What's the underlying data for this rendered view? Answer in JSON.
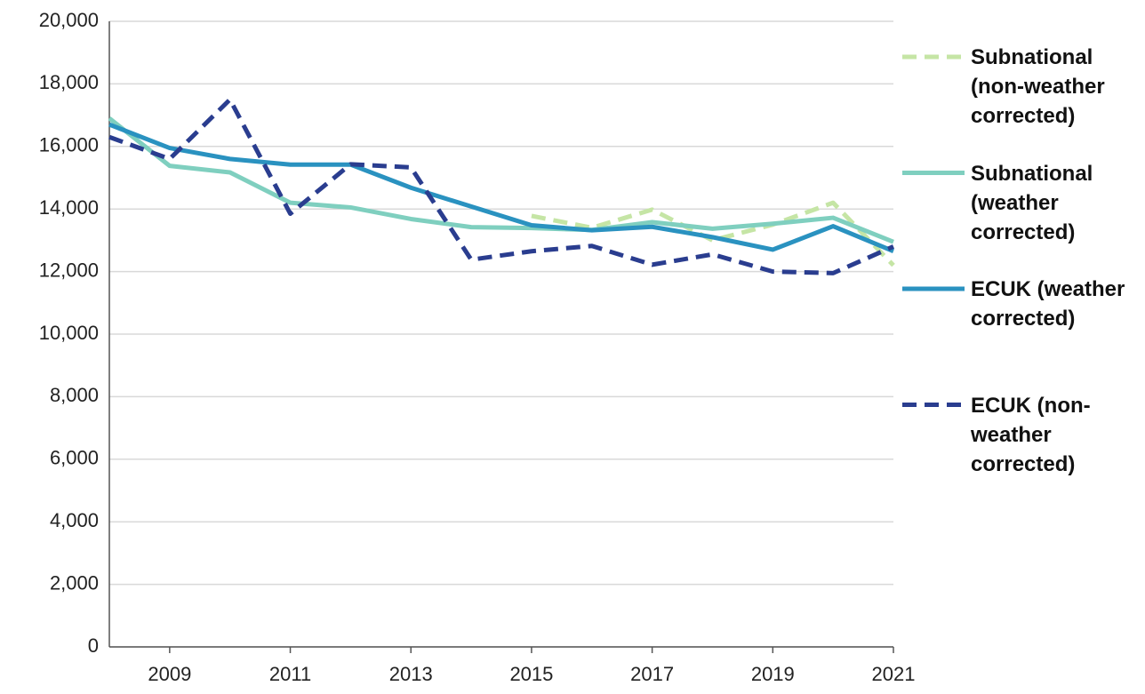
{
  "chart_data": {
    "type": "line",
    "x": [
      2008,
      2009,
      2010,
      2011,
      2012,
      2013,
      2014,
      2015,
      2016,
      2017,
      2018,
      2019,
      2020,
      2021
    ],
    "xlim": [
      2008,
      2021
    ],
    "xticks": [
      2009,
      2011,
      2013,
      2015,
      2017,
      2019,
      2021
    ],
    "ylim": [
      0,
      20000
    ],
    "yticks": [
      0,
      {
        "value": 2000,
        "label": "2,000"
      },
      {
        "value": 4000,
        "label": "4,000"
      },
      {
        "value": 6000,
        "label": "6,000"
      },
      {
        "value": 8000,
        "label": "8,000"
      },
      {
        "value": 10000,
        "label": "10,000"
      },
      {
        "value": 12000,
        "label": "12,000"
      },
      {
        "value": 14000,
        "label": "14,000"
      },
      {
        "value": 16000,
        "label": "16,000"
      },
      {
        "value": 18000,
        "label": "18,000"
      },
      {
        "value": 20000,
        "label": "20,000"
      }
    ],
    "grid": true,
    "legend": "right",
    "series": [
      {
        "name": "Subnational (non-weather corrected)",
        "color": "#c5e5a5",
        "dashed": true,
        "values": [
          null,
          null,
          null,
          null,
          null,
          null,
          null,
          13780,
          13400,
          13980,
          13000,
          13500,
          14200,
          12200
        ]
      },
      {
        "name": "Subnational (weather corrected)",
        "color": "#7fcfbf",
        "dashed": false,
        "values": [
          16900,
          15380,
          15170,
          14200,
          14050,
          13680,
          13420,
          13390,
          13330,
          13580,
          13370,
          13530,
          13720,
          12950
        ]
      },
      {
        "name": "ECUK (weather corrected)",
        "color": "#2a92c0",
        "dashed": false,
        "values": [
          16700,
          15950,
          15600,
          15420,
          15420,
          14680,
          14080,
          13480,
          13320,
          13430,
          13100,
          12700,
          13450,
          12650
        ]
      },
      {
        "name": "ECUK (non-weather corrected)",
        "color": "#2a3d8f",
        "dashed": true,
        "values": [
          16300,
          15600,
          17500,
          13850,
          15430,
          15330,
          12380,
          12650,
          12820,
          12220,
          12550,
          12000,
          11950,
          12800
        ]
      }
    ]
  }
}
